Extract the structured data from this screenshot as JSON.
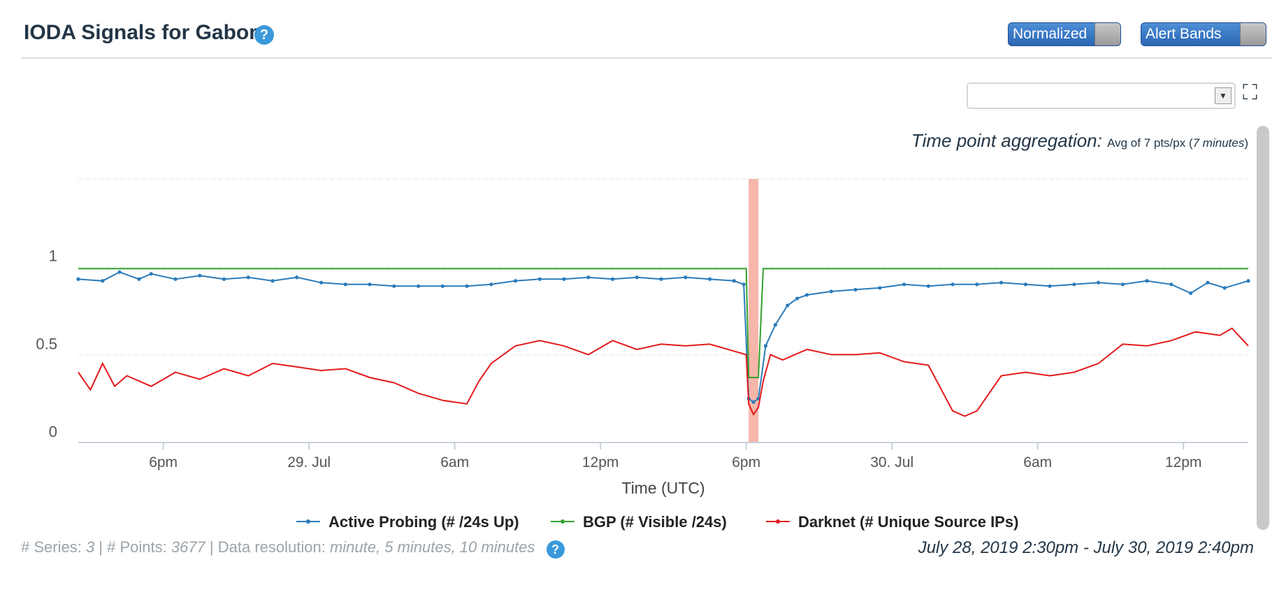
{
  "header": {
    "title": "IODA Signals for Gabon",
    "help_icon": "question-icon",
    "toggle_normalized": "Normalized",
    "toggle_alert_bands": "Alert Bands"
  },
  "controls": {
    "select_value": "",
    "expand_icon": "fullscreen-icon"
  },
  "aggregation": {
    "label": "Time point aggregation:",
    "text_prefix": "Avg of 7 pts/px (",
    "text_minutes": "7 minutes",
    "text_suffix": ")"
  },
  "footer": {
    "series_label": "# Series: ",
    "series_value": "3",
    "points_label": " | # Points: ",
    "points_value": "3677",
    "resolution_label": " | Data resolution: ",
    "resolution_value": "minute, 5 minutes, 10 minutes",
    "date_range": "July 28, 2019 2:30pm - July 30, 2019 2:40pm"
  },
  "colors": {
    "active": "#2b7bba",
    "bgp": "#33a02c",
    "darknet": "#e31a1c",
    "alert_band": "#f4a99b"
  },
  "chart_data": {
    "type": "line",
    "title": "",
    "xlabel": "Time (UTC)",
    "ylabel": "",
    "ylim": [
      0,
      1.5
    ],
    "yticks": [
      {
        "value": 0,
        "label": "0"
      },
      {
        "value": 0.5,
        "label": "0.5"
      },
      {
        "value": 1,
        "label": "1"
      }
    ],
    "xlim_hours": [
      0,
      48.17
    ],
    "xticks": [
      {
        "hour": 3.5,
        "label": "6pm"
      },
      {
        "hour": 9.5,
        "label": "29. Jul"
      },
      {
        "hour": 15.5,
        "label": "6am"
      },
      {
        "hour": 21.5,
        "label": "12pm"
      },
      {
        "hour": 27.5,
        "label": "6pm"
      },
      {
        "hour": 33.5,
        "label": "30. Jul"
      },
      {
        "hour": 39.5,
        "label": "6am"
      },
      {
        "hour": 45.5,
        "label": "12pm"
      }
    ],
    "alert_band_hours": [
      27.6,
      28.0
    ],
    "legend": [
      "Active Probing (# /24s Up)",
      "BGP (# Visible /24s)",
      "Darknet (# Unique Source IPs)"
    ],
    "series": [
      {
        "name": "Active Probing (# /24s Up)",
        "points": [
          [
            0,
            0.93
          ],
          [
            1,
            0.92
          ],
          [
            1.7,
            0.97
          ],
          [
            2.5,
            0.93
          ],
          [
            3,
            0.96
          ],
          [
            4,
            0.93
          ],
          [
            5,
            0.95
          ],
          [
            6,
            0.93
          ],
          [
            7,
            0.94
          ],
          [
            8,
            0.92
          ],
          [
            9,
            0.94
          ],
          [
            10,
            0.91
          ],
          [
            11,
            0.9
          ],
          [
            12,
            0.9
          ],
          [
            13,
            0.89
          ],
          [
            14,
            0.89
          ],
          [
            15,
            0.89
          ],
          [
            16,
            0.89
          ],
          [
            17,
            0.9
          ],
          [
            18,
            0.92
          ],
          [
            19,
            0.93
          ],
          [
            20,
            0.93
          ],
          [
            21,
            0.94
          ],
          [
            22,
            0.93
          ],
          [
            23,
            0.94
          ],
          [
            24,
            0.93
          ],
          [
            25,
            0.94
          ],
          [
            26,
            0.93
          ],
          [
            27,
            0.92
          ],
          [
            27.4,
            0.9
          ],
          [
            27.6,
            0.25
          ],
          [
            27.8,
            0.23
          ],
          [
            28.0,
            0.25
          ],
          [
            28.3,
            0.55
          ],
          [
            28.7,
            0.67
          ],
          [
            29.2,
            0.78
          ],
          [
            29.6,
            0.82
          ],
          [
            30,
            0.84
          ],
          [
            31,
            0.86
          ],
          [
            32,
            0.87
          ],
          [
            33,
            0.88
          ],
          [
            34,
            0.9
          ],
          [
            35,
            0.89
          ],
          [
            36,
            0.9
          ],
          [
            37,
            0.9
          ],
          [
            38,
            0.91
          ],
          [
            39,
            0.9
          ],
          [
            40,
            0.89
          ],
          [
            41,
            0.9
          ],
          [
            42,
            0.91
          ],
          [
            43,
            0.9
          ],
          [
            44,
            0.92
          ],
          [
            45,
            0.9
          ],
          [
            45.8,
            0.85
          ],
          [
            46.5,
            0.91
          ],
          [
            47.2,
            0.88
          ],
          [
            48.17,
            0.92
          ]
        ]
      },
      {
        "name": "BGP (# Visible /24s)",
        "points": [
          [
            0,
            0.99
          ],
          [
            27.5,
            0.99
          ],
          [
            27.6,
            0.37
          ],
          [
            28.0,
            0.37
          ],
          [
            28.2,
            0.99
          ],
          [
            48.17,
            0.99
          ]
        ]
      },
      {
        "name": "Darknet (# Unique Source IPs)",
        "points": [
          [
            0,
            0.4
          ],
          [
            0.5,
            0.3
          ],
          [
            1,
            0.45
          ],
          [
            1.5,
            0.32
          ],
          [
            2,
            0.38
          ],
          [
            3,
            0.32
          ],
          [
            4,
            0.4
          ],
          [
            5,
            0.36
          ],
          [
            6,
            0.42
          ],
          [
            7,
            0.38
          ],
          [
            8,
            0.45
          ],
          [
            9,
            0.43
          ],
          [
            10,
            0.41
          ],
          [
            11,
            0.42
          ],
          [
            12,
            0.37
          ],
          [
            13,
            0.34
          ],
          [
            14,
            0.28
          ],
          [
            15,
            0.24
          ],
          [
            16,
            0.22
          ],
          [
            16.5,
            0.35
          ],
          [
            17,
            0.45
          ],
          [
            18,
            0.55
          ],
          [
            19,
            0.58
          ],
          [
            20,
            0.55
          ],
          [
            21,
            0.5
          ],
          [
            22,
            0.58
          ],
          [
            23,
            0.53
          ],
          [
            24,
            0.56
          ],
          [
            25,
            0.55
          ],
          [
            26,
            0.56
          ],
          [
            27,
            0.52
          ],
          [
            27.5,
            0.5
          ],
          [
            27.6,
            0.22
          ],
          [
            27.8,
            0.16
          ],
          [
            28.0,
            0.2
          ],
          [
            28.2,
            0.35
          ],
          [
            28.5,
            0.5
          ],
          [
            29,
            0.47
          ],
          [
            30,
            0.53
          ],
          [
            31,
            0.5
          ],
          [
            32,
            0.5
          ],
          [
            33,
            0.51
          ],
          [
            34,
            0.46
          ],
          [
            35,
            0.44
          ],
          [
            36,
            0.18
          ],
          [
            36.5,
            0.15
          ],
          [
            37,
            0.18
          ],
          [
            38,
            0.38
          ],
          [
            39,
            0.4
          ],
          [
            40,
            0.38
          ],
          [
            41,
            0.4
          ],
          [
            42,
            0.45
          ],
          [
            43,
            0.56
          ],
          [
            44,
            0.55
          ],
          [
            45,
            0.58
          ],
          [
            46,
            0.63
          ],
          [
            47,
            0.61
          ],
          [
            47.5,
            0.65
          ],
          [
            48.17,
            0.55
          ]
        ]
      }
    ]
  }
}
